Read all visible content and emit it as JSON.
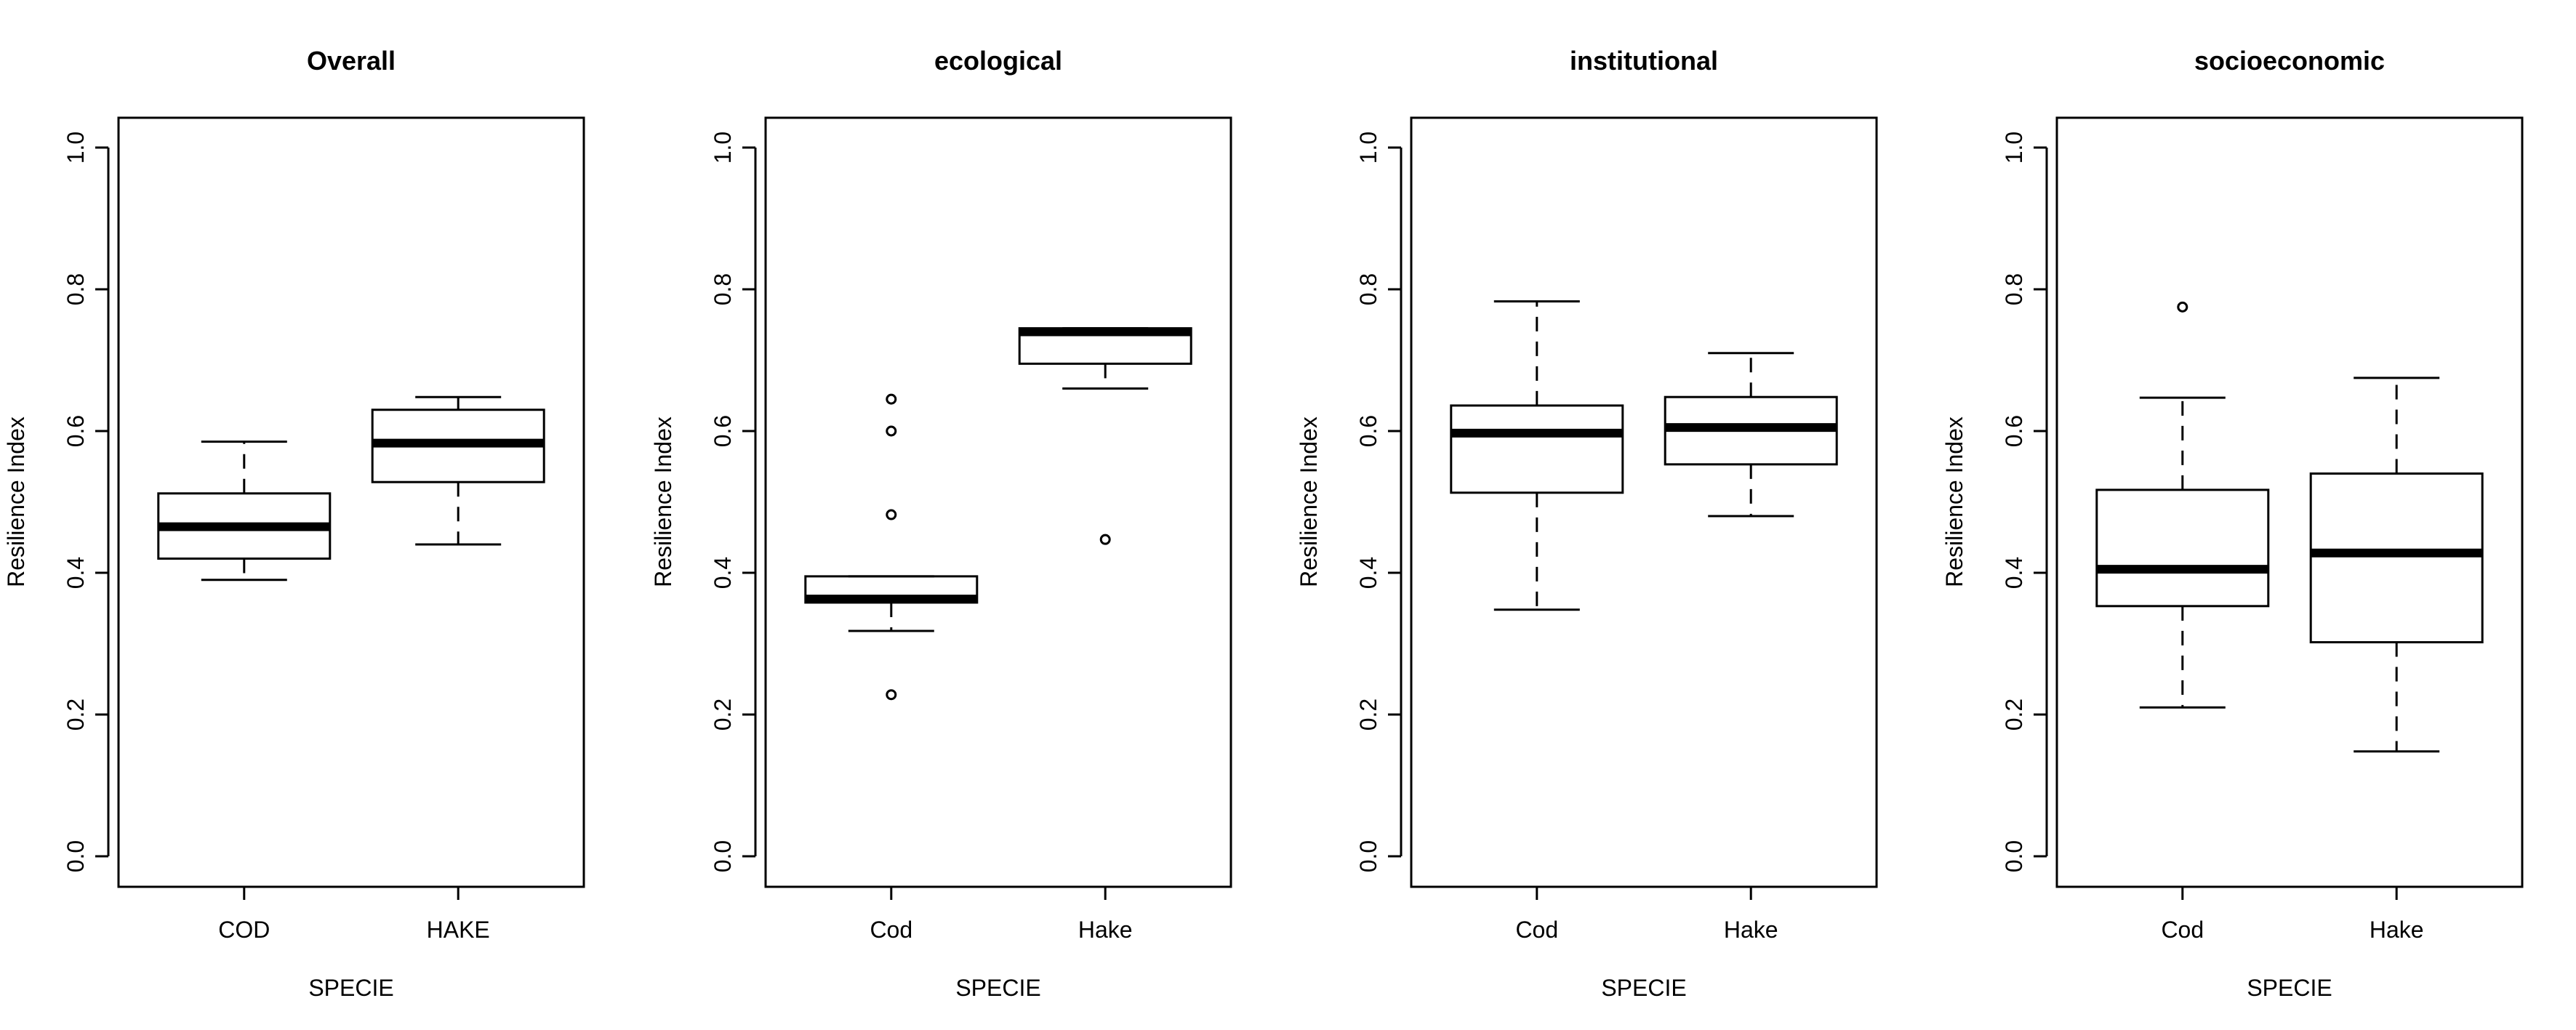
{
  "chart_data": [
    {
      "type": "box",
      "title": "Overall",
      "xlabel": "SPECIE",
      "ylabel": "Resilience Index",
      "ylim": [
        0,
        1
      ],
      "yticks": [
        "0.0",
        "0.2",
        "0.4",
        "0.6",
        "0.8",
        "1.0"
      ],
      "categories": [
        "COD",
        "HAKE"
      ],
      "boxes": [
        {
          "whisker_low": 0.39,
          "q1": 0.42,
          "median": 0.465,
          "q3": 0.512,
          "whisker_high": 0.585,
          "outliers": []
        },
        {
          "whisker_low": 0.44,
          "q1": 0.528,
          "median": 0.583,
          "q3": 0.63,
          "whisker_high": 0.648,
          "outliers": []
        }
      ]
    },
    {
      "type": "box",
      "title": "ecological",
      "xlabel": "SPECIE",
      "ylabel": "Resilience Index",
      "ylim": [
        0,
        1
      ],
      "yticks": [
        "0.0",
        "0.2",
        "0.4",
        "0.6",
        "0.8",
        "1.0"
      ],
      "categories": [
        "Cod",
        "Hake"
      ],
      "boxes": [
        {
          "whisker_low": 0.318,
          "q1": 0.358,
          "median": 0.363,
          "q3": 0.395,
          "whisker_high": 0.395,
          "outliers": [
            0.228,
            0.482,
            0.6,
            0.645
          ]
        },
        {
          "whisker_low": 0.66,
          "q1": 0.695,
          "median": 0.74,
          "q3": 0.745,
          "whisker_high": 0.745,
          "outliers": [
            0.447
          ]
        }
      ]
    },
    {
      "type": "box",
      "title": "institutional",
      "xlabel": "SPECIE",
      "ylabel": "Resilience Index",
      "ylim": [
        0,
        1
      ],
      "yticks": [
        "0.0",
        "0.2",
        "0.4",
        "0.6",
        "0.8",
        "1.0"
      ],
      "categories": [
        "Cod",
        "Hake"
      ],
      "boxes": [
        {
          "whisker_low": 0.348,
          "q1": 0.513,
          "median": 0.597,
          "q3": 0.636,
          "whisker_high": 0.783,
          "outliers": []
        },
        {
          "whisker_low": 0.48,
          "q1": 0.553,
          "median": 0.605,
          "q3": 0.648,
          "whisker_high": 0.71,
          "outliers": []
        }
      ]
    },
    {
      "type": "box",
      "title": "socioeconomic",
      "xlabel": "SPECIE",
      "ylabel": "Resilience Index",
      "ylim": [
        0,
        1
      ],
      "yticks": [
        "0.0",
        "0.2",
        "0.4",
        "0.6",
        "0.8",
        "1.0"
      ],
      "categories": [
        "Cod",
        "Hake"
      ],
      "boxes": [
        {
          "whisker_low": 0.21,
          "q1": 0.353,
          "median": 0.405,
          "q3": 0.517,
          "whisker_high": 0.647,
          "outliers": [
            0.775
          ]
        },
        {
          "whisker_low": 0.148,
          "q1": 0.302,
          "median": 0.428,
          "q3": 0.54,
          "whisker_high": 0.675,
          "outliers": []
        }
      ]
    }
  ]
}
